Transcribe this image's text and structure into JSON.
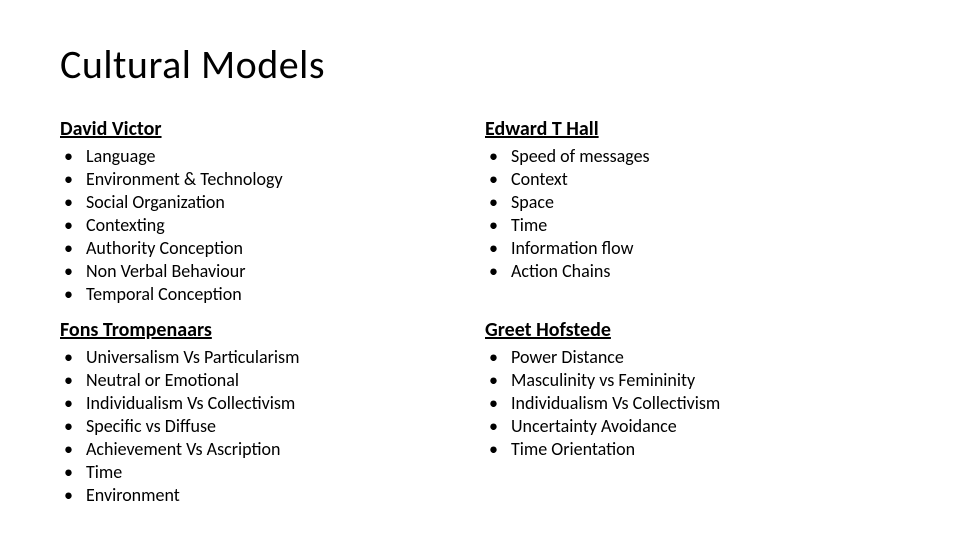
{
  "title": "Cultural  Models",
  "title_fontsize": 40,
  "title_fontweight": 300,
  "heading_fontsize": 20,
  "body_fontsize": 18,
  "text_color": "#000000",
  "background_color": "#ffffff",
  "sections": {
    "top_left": {
      "heading": "David Victor",
      "items": [
        "Language",
        "Environment & Technology",
        "Social Organization",
        "Contexting",
        "Authority Conception",
        "Non Verbal Behaviour",
        "Temporal Conception"
      ]
    },
    "top_right": {
      "heading": "Edward T Hall",
      "items": [
        "Speed of messages",
        "Context",
        "Space",
        "Time",
        "Information flow",
        "Action Chains"
      ]
    },
    "bottom_left": {
      "heading": "Fons Trompenaars",
      "items": [
        "Universalism Vs Particularism",
        "Neutral or Emotional",
        "Individualism Vs Collectivism",
        "Specific vs Diffuse",
        "Achievement Vs Ascription",
        "Time",
        "Environment"
      ]
    },
    "bottom_right": {
      "heading": "Greet Hofstede",
      "items": [
        "Power Distance",
        "Masculinity vs Femininity",
        "Individualism Vs Collectivism",
        "Uncertainty Avoidance",
        "Time Orientation"
      ]
    }
  }
}
